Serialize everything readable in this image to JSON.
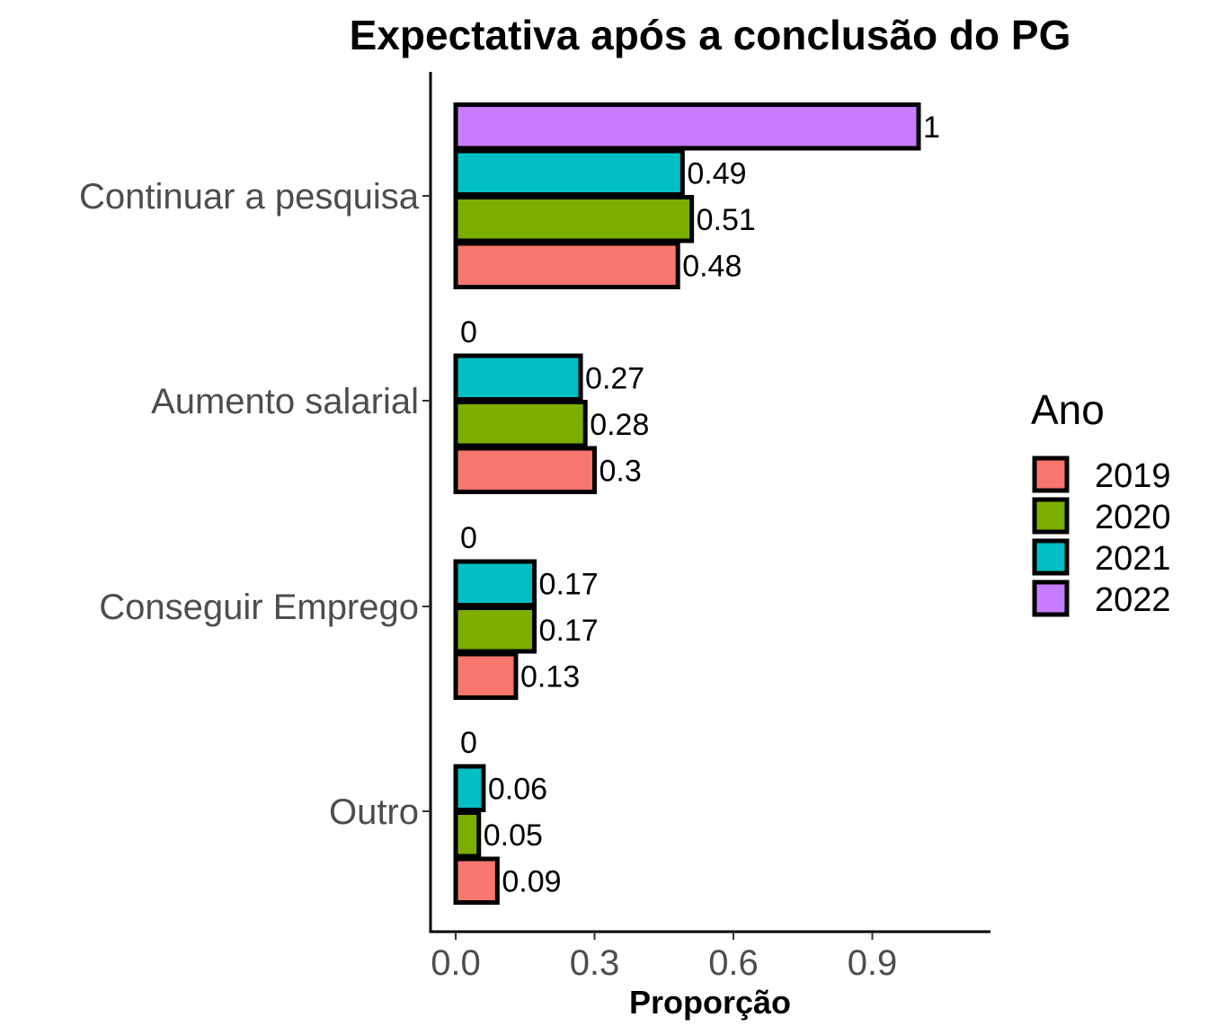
{
  "chart_data": {
    "type": "bar",
    "orientation": "horizontal",
    "title": "Expectativa após a conclusão do PG",
    "xlabel": "Proporção",
    "ylabel": "",
    "xlim": [
      0,
      1.12
    ],
    "x_ticks": [
      0.0,
      0.3,
      0.6,
      0.9
    ],
    "x_tick_labels": [
      "0.0",
      "0.3",
      "0.6",
      "0.9"
    ],
    "categories": [
      "Continuar a pesquisa",
      "Aumento salarial",
      "Conseguir Emprego",
      "Outro"
    ],
    "legend_title": "Ano",
    "legend_position": "right",
    "grid": false,
    "series": [
      {
        "name": "2019",
        "color": "#F8766D",
        "values": [
          0.48,
          0.3,
          0.13,
          0.09
        ],
        "labels": [
          "0.48",
          "0.3",
          "0.13",
          "0.09"
        ]
      },
      {
        "name": "2020",
        "color": "#7CAE00",
        "values": [
          0.51,
          0.28,
          0.17,
          0.05
        ],
        "labels": [
          "0.51",
          "0.28",
          "0.17",
          "0.05"
        ]
      },
      {
        "name": "2021",
        "color": "#00BFC4",
        "values": [
          0.49,
          0.27,
          0.17,
          0.06
        ],
        "labels": [
          "0.49",
          "0.27",
          "0.17",
          "0.06"
        ]
      },
      {
        "name": "2022",
        "color": "#C77CFF",
        "values": [
          1,
          0,
          0,
          0
        ],
        "labels": [
          "1",
          "0",
          "0",
          "0"
        ]
      }
    ]
  }
}
